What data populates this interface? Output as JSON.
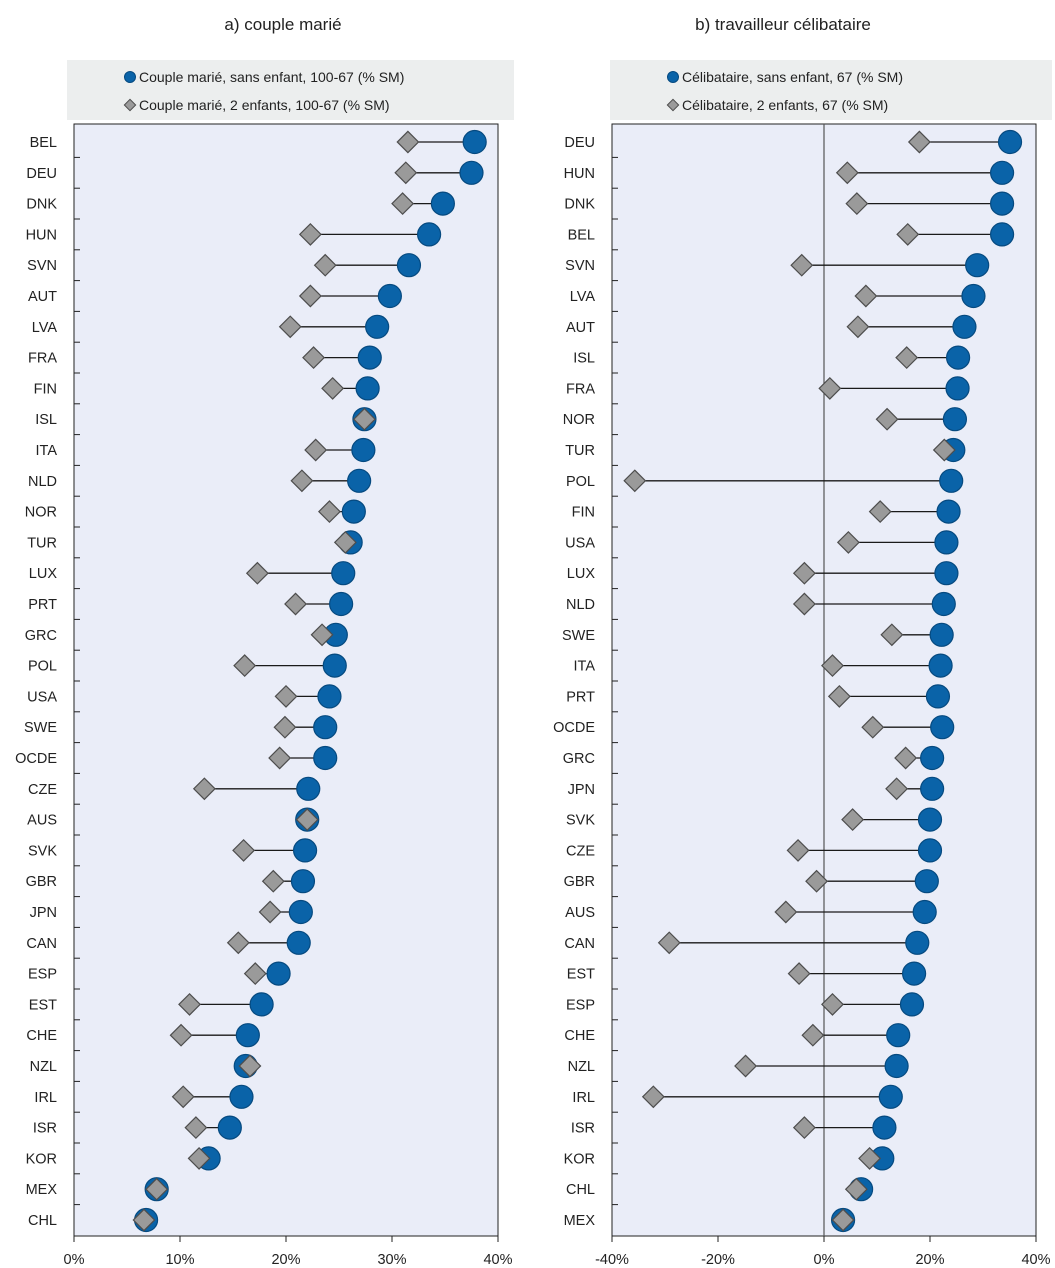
{
  "colors": {
    "circle": "#0a63a8",
    "circle_stroke": "#064a80",
    "diamond": "#9a9a9a",
    "diamond_stroke": "#4d4d4d",
    "plot_bg": "#eaedf8",
    "legend_bg": "#eceeee",
    "line": "#1a1a1a"
  },
  "chart_data": [
    {
      "type": "scatter",
      "title": "a) couple marié",
      "xlim": [
        0,
        40
      ],
      "xticks": [
        0,
        10,
        20,
        30,
        40
      ],
      "xtick_labels": [
        "0%",
        "10%",
        "20%",
        "30%",
        "40%"
      ],
      "legend": {
        "placement": "top",
        "entries": [
          "Couple marié, sans enfant, 100-67 (% SM)",
          "Couple marié, 2 enfants, 100-67 (% SM)"
        ]
      },
      "categories": [
        "BEL",
        "DEU",
        "DNK",
        "HUN",
        "SVN",
        "AUT",
        "LVA",
        "FRA",
        "FIN",
        "ISL",
        "ITA",
        "NLD",
        "NOR",
        "TUR",
        "LUX",
        "PRT",
        "GRC",
        "POL",
        "USA",
        "SWE",
        "OCDE",
        "CZE",
        "AUS",
        "SVK",
        "GBR",
        "JPN",
        "CAN",
        "ESP",
        "EST",
        "CHE",
        "NZL",
        "IRL",
        "ISR",
        "KOR",
        "MEX",
        "CHL"
      ],
      "series": [
        {
          "name": "Couple marié, sans enfant, 100-67 (% SM)",
          "marker": "circle",
          "values": [
            37.8,
            37.5,
            34.8,
            33.5,
            31.6,
            29.8,
            28.6,
            27.9,
            27.7,
            27.4,
            27.3,
            26.9,
            26.4,
            26.1,
            25.4,
            25.2,
            24.7,
            24.6,
            24.1,
            23.7,
            23.7,
            22.1,
            22.0,
            21.8,
            21.6,
            21.4,
            21.2,
            19.3,
            17.7,
            16.4,
            16.2,
            15.8,
            14.7,
            12.7,
            7.8,
            6.8
          ]
        },
        {
          "name": "Couple marié, 2 enfants, 100-67 (% SM)",
          "marker": "diamond",
          "values": [
            31.5,
            31.3,
            31.0,
            22.3,
            23.7,
            22.3,
            20.4,
            22.6,
            24.4,
            27.4,
            22.8,
            21.5,
            24.1,
            25.6,
            17.3,
            20.9,
            23.4,
            16.1,
            20.0,
            19.9,
            19.4,
            12.3,
            22.0,
            16.0,
            18.8,
            18.5,
            15.5,
            17.1,
            10.9,
            10.1,
            16.6,
            10.3,
            11.5,
            11.8,
            7.8,
            6.6
          ]
        }
      ]
    },
    {
      "type": "scatter",
      "title": "b) travailleur célibataire",
      "xlim": [
        -40,
        40
      ],
      "xticks": [
        -40,
        -20,
        0,
        20,
        40
      ],
      "xtick_labels": [
        "-40%",
        "-20%",
        "0%",
        "20%",
        "40%"
      ],
      "legend": {
        "placement": "top",
        "entries": [
          "Célibataire, sans enfant, 67 (% SM)",
          "Célibataire, 2 enfants, 67 (% SM)"
        ]
      },
      "categories": [
        "DEU",
        "HUN",
        "DNK",
        "BEL",
        "SVN",
        "LVA",
        "AUT",
        "ISL",
        "FRA",
        "NOR",
        "TUR",
        "POL",
        "FIN",
        "USA",
        "LUX",
        "NLD",
        "SWE",
        "ITA",
        "PRT",
        "OCDE",
        "GRC",
        "JPN",
        "SVK",
        "CZE",
        "GBR",
        "AUS",
        "CAN",
        "EST",
        "ESP",
        "CHE",
        "NZL",
        "IRL",
        "ISR",
        "KOR",
        "CHL",
        "MEX"
      ],
      "series": [
        {
          "name": "Célibataire, sans enfant, 67 (% SM)",
          "marker": "circle",
          "values": [
            35.1,
            33.6,
            33.6,
            33.6,
            28.9,
            28.2,
            26.5,
            25.3,
            25.2,
            24.7,
            24.4,
            24.0,
            23.5,
            23.1,
            23.1,
            22.6,
            22.2,
            22.0,
            21.5,
            22.3,
            20.4,
            20.4,
            20.0,
            20.0,
            19.4,
            19.0,
            17.6,
            17.0,
            16.6,
            14.0,
            13.7,
            12.6,
            11.4,
            11.0,
            7.0,
            3.6
          ]
        },
        {
          "name": "Célibataire, 2 enfants, 67 (% SM)",
          "marker": "diamond",
          "values": [
            18.0,
            4.4,
            6.2,
            15.8,
            -4.2,
            7.9,
            6.4,
            15.6,
            1.1,
            11.9,
            22.7,
            -35.7,
            10.6,
            4.6,
            -3.7,
            -3.7,
            12.8,
            1.6,
            2.9,
            9.2,
            15.4,
            13.7,
            5.4,
            -4.9,
            -1.4,
            -7.2,
            -29.2,
            -4.7,
            1.6,
            -2.1,
            -14.8,
            -32.2,
            -3.7,
            8.6,
            6.1,
            3.6
          ]
        }
      ]
    }
  ]
}
